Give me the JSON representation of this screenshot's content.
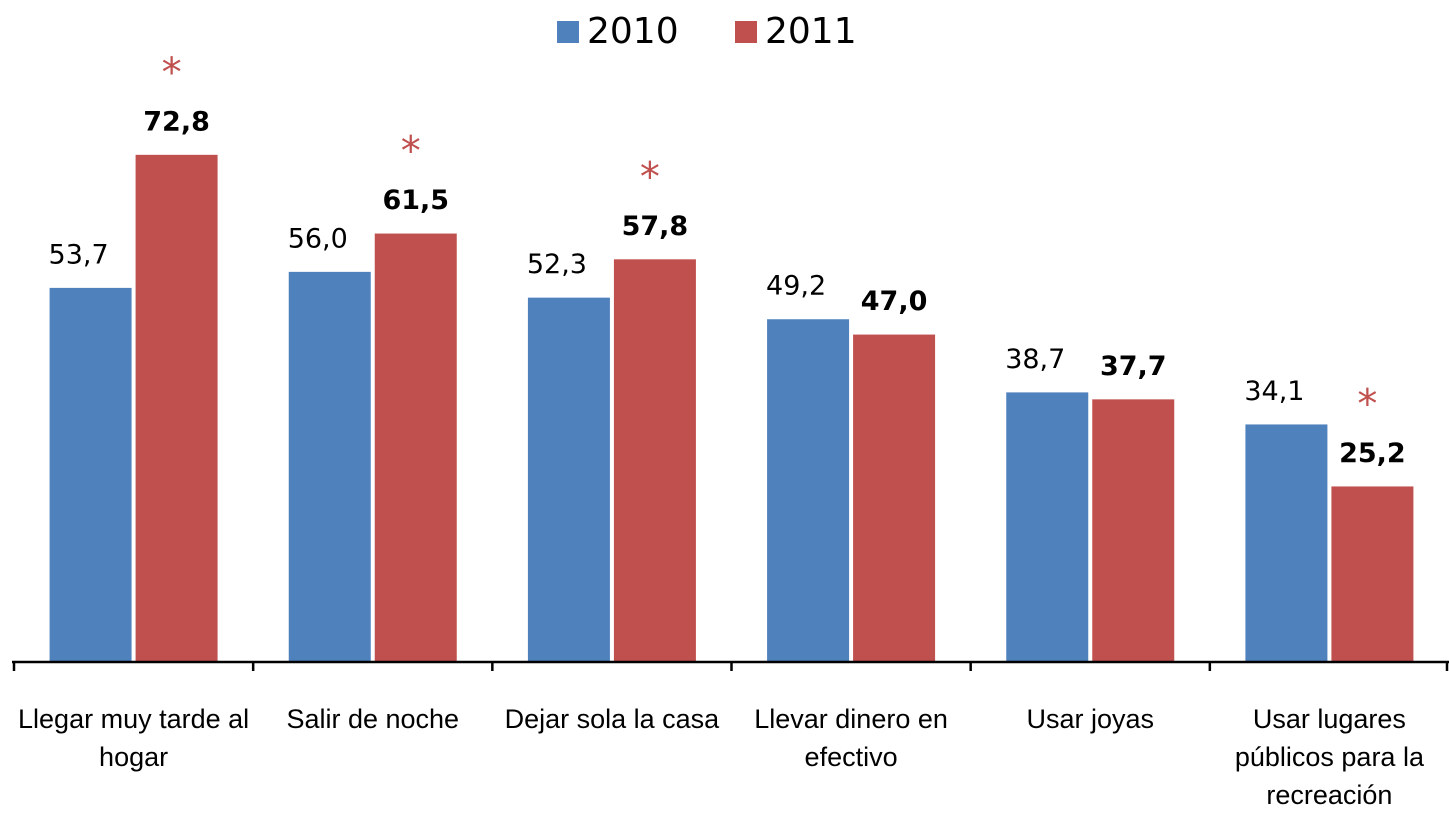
{
  "chart_data": {
    "type": "bar",
    "categories": [
      "Llegar muy tarde al hogar",
      "Salir de noche",
      "Dejar sola la casa",
      "Llevar dinero en efectivo",
      "Usar joyas",
      "Usar lugares públicos para la recreación"
    ],
    "series": [
      {
        "name": "2010",
        "color": "#4f81bd",
        "values": [
          53.7,
          56.0,
          52.3,
          49.2,
          38.7,
          34.1
        ],
        "value_labels": [
          "53,7",
          "56,0",
          "52,3",
          "49,2",
          "38,7",
          "34,1"
        ]
      },
      {
        "name": "2011",
        "color": "#c0504d",
        "values": [
          72.8,
          61.5,
          57.8,
          47.0,
          37.7,
          25.2
        ],
        "value_labels": [
          "72,8",
          "61,5",
          "57,8",
          "47,0",
          "37,7",
          "25,2"
        ],
        "annotations": [
          "*",
          "*",
          "*",
          null,
          null,
          "*"
        ]
      }
    ],
    "ylim": [
      0,
      90
    ],
    "legend": "top"
  }
}
